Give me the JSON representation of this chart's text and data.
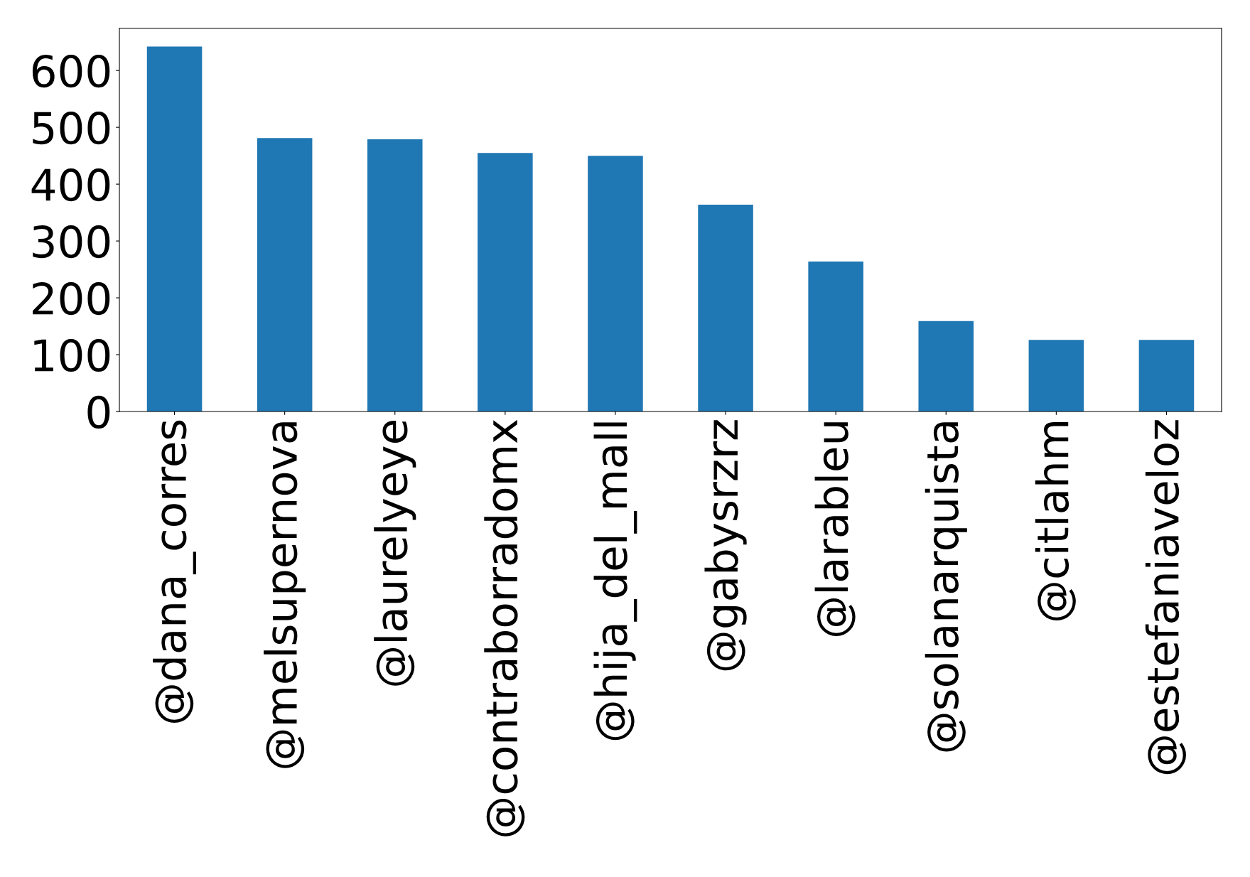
{
  "chart_data": {
    "type": "bar",
    "categories": [
      "@dana_corres",
      "@melsupernova",
      "@laurelyeye",
      "@contraborradomx",
      "@hija_del_mall",
      "@gabysrzrz",
      "@larableu",
      "@solanarquista",
      "@citlahm",
      "@estefaniaveloz"
    ],
    "values": [
      642,
      481,
      479,
      455,
      450,
      364,
      264,
      159,
      126,
      126
    ],
    "color": "#1f77b4",
    "ylim": [
      0,
      674
    ],
    "yticks": [
      0,
      100,
      200,
      300,
      400,
      500,
      600
    ],
    "grid": false
  }
}
